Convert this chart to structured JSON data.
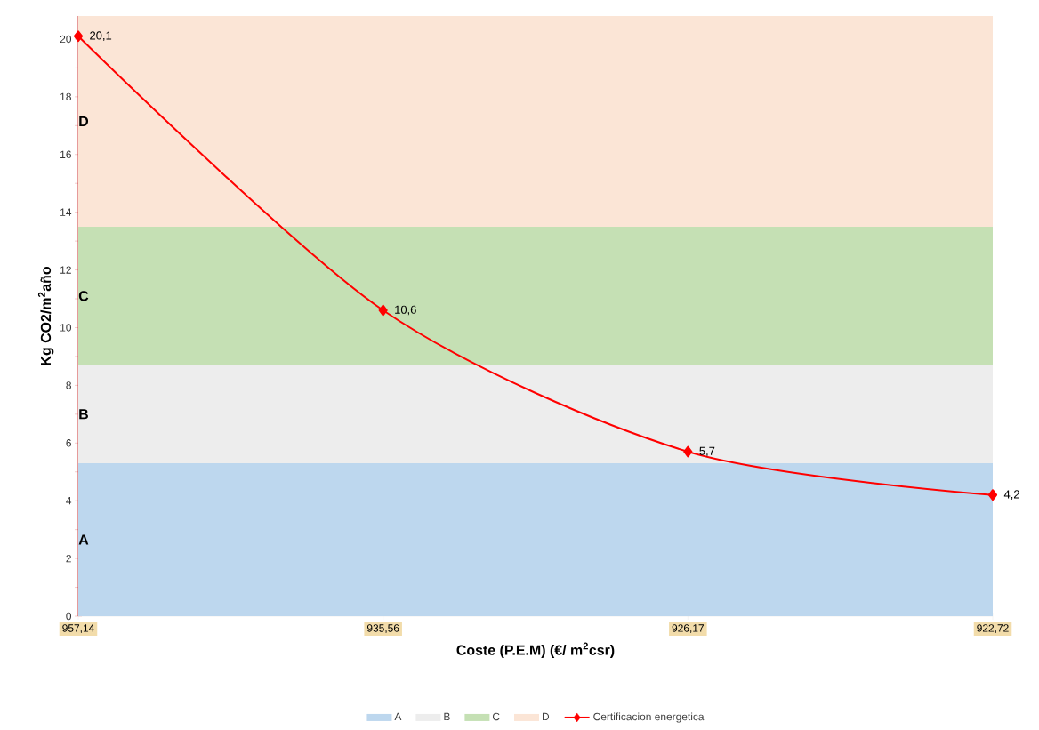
{
  "chart_data": {
    "type": "line",
    "xlabel": "Coste (P.E.M)  (€/ m$^{2}$csr)",
    "ylabel": "Kg CO2/m$^{2}$año",
    "categories": [
      "957,14",
      "935,56",
      "926,17",
      "922,72"
    ],
    "series": [
      {
        "name": "Certificacion energetica",
        "color": "#ff0000",
        "values": [
          20.1,
          10.6,
          5.7,
          4.2
        ],
        "value_labels": [
          "20,1",
          "10,6",
          "5,7",
          "4,2"
        ]
      }
    ],
    "ylim": [
      0,
      20.8
    ],
    "yticks": [
      0,
      {
        "value": 1,
        "label": null
      },
      2,
      {
        "value": 3,
        "label": null
      },
      4,
      {
        "value": 5,
        "label": null
      },
      6,
      {
        "value": 7,
        "label": null
      },
      8,
      {
        "value": 9,
        "label": null
      },
      10,
      {
        "value": 11,
        "label": null
      },
      12,
      {
        "value": 13,
        "label": null
      },
      14,
      {
        "value": 15,
        "label": null
      },
      16,
      {
        "value": 17,
        "label": null
      },
      18,
      {
        "value": 19,
        "label": null
      },
      20
    ],
    "bands": [
      {
        "axis": "y",
        "from": 0,
        "to": 5.3,
        "label": "A",
        "color": "#bdd7ee"
      },
      {
        "axis": "y",
        "from": 5.3,
        "to": 8.7,
        "label": "B",
        "color": "#ededed"
      },
      {
        "axis": "y",
        "from": 8.7,
        "to": 13.5,
        "label": "C",
        "color": "#c5e0b4"
      },
      {
        "axis": "y",
        "from": 13.5,
        "to": 20.8,
        "label": "D",
        "color": "#fbe5d6"
      }
    ],
    "marker": "diamond",
    "line_style": "solid",
    "legend": "bottom",
    "grid": false
  }
}
